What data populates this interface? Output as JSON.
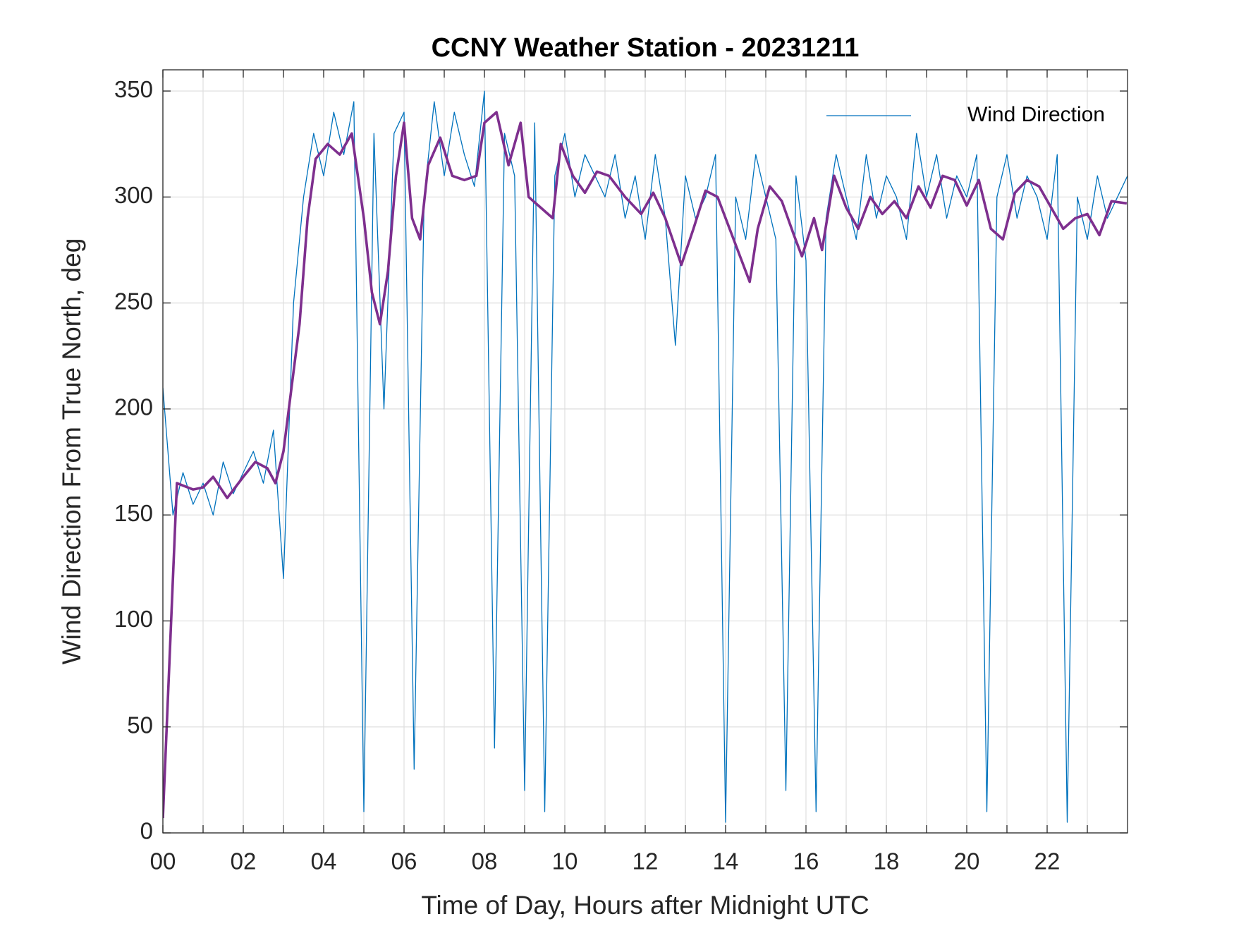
{
  "chart_data": {
    "type": "line",
    "title": "CCNY Weather Station - 20231211",
    "xlabel": "Time of Day, Hours after Midnight UTC",
    "ylabel": "Wind Direction From True North, deg",
    "xlim": [
      0,
      24
    ],
    "ylim": [
      0,
      360
    ],
    "xticks": [
      {
        "value": 0,
        "label": "00"
      },
      {
        "value": 2,
        "label": "02"
      },
      {
        "value": 4,
        "label": "04"
      },
      {
        "value": 6,
        "label": "06"
      },
      {
        "value": 8,
        "label": "08"
      },
      10,
      12,
      14,
      16,
      18,
      20,
      22
    ],
    "xminorticks": [
      1,
      3,
      5,
      7,
      9,
      11,
      13,
      15,
      17,
      19,
      21,
      23
    ],
    "yticks": [
      0,
      50,
      100,
      150,
      200,
      250,
      300,
      350
    ],
    "grid": true,
    "legend": "northeast",
    "series": [
      {
        "name": "Wind Direction",
        "color": "#0072bd",
        "width": 1.3,
        "x": [
          0,
          0.25,
          0.5,
          0.75,
          1,
          1.25,
          1.5,
          1.75,
          2,
          2.25,
          2.5,
          2.75,
          3,
          3.25,
          3.5,
          3.75,
          4,
          4.25,
          4.5,
          4.75,
          5,
          5.25,
          5.5,
          5.75,
          6,
          6.25,
          6.5,
          6.75,
          7,
          7.25,
          7.5,
          7.75,
          8,
          8.25,
          8.5,
          8.75,
          9,
          9.25,
          9.5,
          9.75,
          10,
          10.25,
          10.5,
          10.75,
          11,
          11.25,
          11.5,
          11.75,
          12,
          12.25,
          12.5,
          12.75,
          13,
          13.25,
          13.5,
          13.75,
          14,
          14.25,
          14.5,
          14.75,
          15,
          15.25,
          15.5,
          15.75,
          16,
          16.25,
          16.5,
          16.75,
          17,
          17.25,
          17.5,
          17.75,
          18,
          18.25,
          18.5,
          18.75,
          19,
          19.25,
          19.5,
          19.75,
          20,
          20.25,
          20.5,
          20.75,
          21,
          21.25,
          21.5,
          21.75,
          22,
          22.25,
          22.5,
          22.75,
          23,
          23.25,
          23.5,
          23.75,
          24
        ],
        "values": [
          210,
          150,
          170,
          155,
          165,
          150,
          175,
          160,
          170,
          180,
          165,
          190,
          120,
          250,
          300,
          330,
          310,
          340,
          320,
          345,
          10,
          330,
          200,
          330,
          340,
          30,
          300,
          345,
          310,
          340,
          320,
          305,
          350,
          40,
          330,
          310,
          20,
          335,
          10,
          310,
          330,
          300,
          320,
          310,
          300,
          320,
          290,
          310,
          280,
          320,
          290,
          230,
          310,
          290,
          300,
          320,
          5,
          300,
          280,
          320,
          300,
          280,
          20,
          310,
          270,
          10,
          290,
          320,
          300,
          280,
          320,
          290,
          310,
          300,
          280,
          330,
          300,
          320,
          290,
          310,
          300,
          320,
          10,
          300,
          320,
          290,
          310,
          300,
          280,
          320,
          5,
          300,
          280,
          310,
          290,
          300,
          310
        ]
      },
      {
        "color": "#7e2f8e",
        "width": 3.6,
        "x": [
          0,
          0.35,
          0.75,
          1,
          1.25,
          1.6,
          2,
          2.3,
          2.6,
          2.8,
          3,
          3.2,
          3.4,
          3.6,
          3.8,
          4.1,
          4.4,
          4.7,
          5,
          5.2,
          5.4,
          5.6,
          5.8,
          6,
          6.2,
          6.4,
          6.6,
          6.9,
          7.2,
          7.5,
          7.8,
          8,
          8.3,
          8.6,
          8.9,
          9.1,
          9.4,
          9.7,
          9.9,
          10.2,
          10.5,
          10.8,
          11.1,
          11.5,
          11.9,
          12.2,
          12.5,
          12.9,
          13.2,
          13.5,
          13.8,
          14.1,
          14.4,
          14.6,
          14.8,
          15.1,
          15.4,
          15.7,
          15.9,
          16.2,
          16.4,
          16.7,
          17,
          17.3,
          17.6,
          17.9,
          18.2,
          18.5,
          18.8,
          19.1,
          19.4,
          19.7,
          20,
          20.3,
          20.6,
          20.9,
          21.2,
          21.5,
          21.8,
          22.1,
          22.4,
          22.7,
          23,
          23.3,
          23.6,
          23.98
        ],
        "values": [
          7,
          165,
          162,
          163,
          168,
          158,
          168,
          175,
          172,
          165,
          180,
          210,
          240,
          290,
          318,
          325,
          320,
          330,
          290,
          255,
          240,
          265,
          310,
          335,
          290,
          280,
          315,
          328,
          310,
          308,
          310,
          335,
          340,
          315,
          335,
          300,
          295,
          290,
          325,
          310,
          302,
          312,
          310,
          300,
          292,
          302,
          290,
          268,
          285,
          303,
          300,
          285,
          270,
          260,
          285,
          305,
          298,
          282,
          272,
          290,
          275,
          310,
          295,
          285,
          300,
          292,
          298,
          290,
          305,
          295,
          310,
          308,
          296,
          308,
          285,
          280,
          302,
          308,
          305,
          295,
          285,
          290,
          292,
          282,
          298,
          297
        ]
      }
    ]
  }
}
